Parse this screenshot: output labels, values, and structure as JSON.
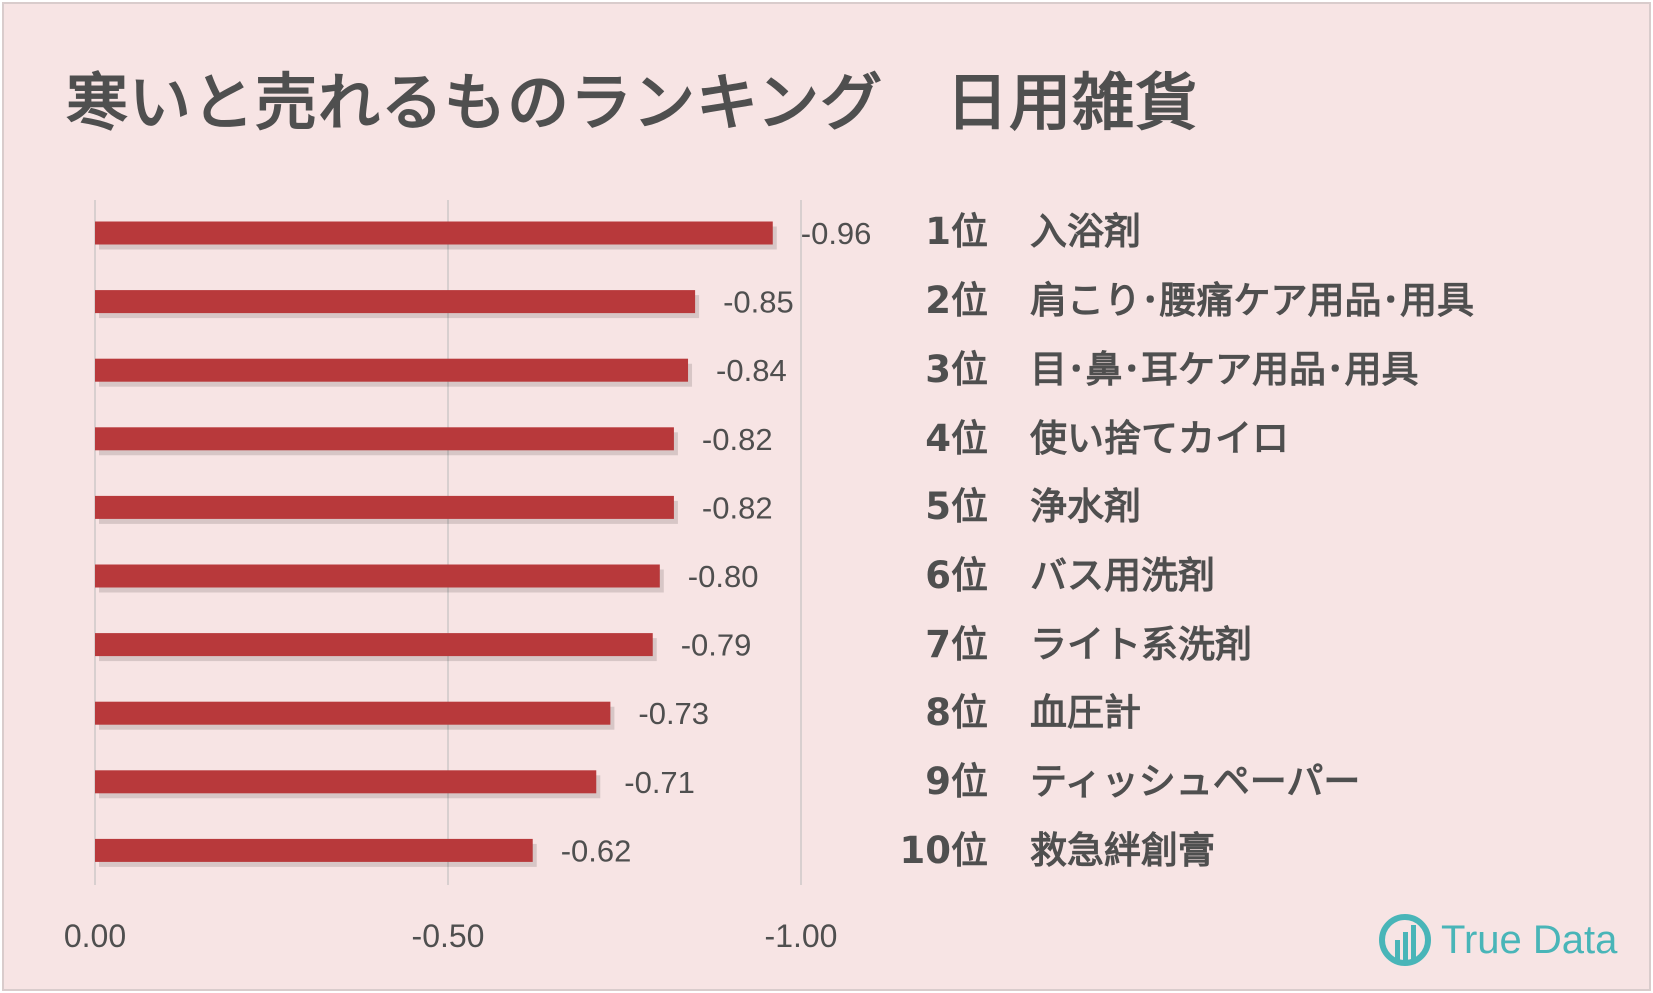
{
  "title": "寒いと売れるものランキング　日用雑貨",
  "chart_data": {
    "type": "bar",
    "orientation": "horizontal",
    "title": "寒いと売れるものランキング　日用雑貨",
    "categories": [
      "1位 入浴剤",
      "2位 肩こり･腰痛ケア用品･用具",
      "3位 目･鼻･耳ケア用品･用具",
      "4位 使い捨てカイロ",
      "5位 浄水剤",
      "6位 バス用洗剤",
      "7位 ライト系洗剤",
      "8位 血圧計",
      "9位 ティッシュペーパー",
      "10位 救急絆創膏"
    ],
    "values": [
      -0.96,
      -0.85,
      -0.84,
      -0.82,
      -0.82,
      -0.8,
      -0.79,
      -0.73,
      -0.71,
      -0.62
    ],
    "value_labels": [
      "-0.96",
      "-0.85",
      "-0.84",
      "-0.82",
      "-0.82",
      "-0.80",
      "-0.79",
      "-0.73",
      "-0.71",
      "-0.62"
    ],
    "xlim": [
      0,
      -1.0
    ],
    "x_ticks": [
      0,
      -0.5,
      -1.0
    ],
    "x_tick_labels": [
      "0.00",
      "-0.50",
      "-1.00"
    ],
    "xlabel": "",
    "ylabel": "",
    "grid": "vertical",
    "legend": "none",
    "bar_color": "#b8393b"
  },
  "ranking": [
    {
      "rank": "1位",
      "item": "入浴剤"
    },
    {
      "rank": "2位",
      "item": "肩こり･腰痛ケア用品･用具"
    },
    {
      "rank": "3位",
      "item": "目･鼻･耳ケア用品･用具"
    },
    {
      "rank": "4位",
      "item": "使い捨てカイロ"
    },
    {
      "rank": "5位",
      "item": "浄水剤"
    },
    {
      "rank": "6位",
      "item": "バス用洗剤"
    },
    {
      "rank": "7位",
      "item": "ライト系洗剤"
    },
    {
      "rank": "8位",
      "item": "血圧計"
    },
    {
      "rank": "9位",
      "item": "ティッシュペーパー"
    },
    {
      "rank": "10位",
      "item": "救急絆創膏"
    }
  ],
  "logo": {
    "text": "True Data",
    "icon": "truedata-logo-icon",
    "color": "#49b5b8"
  },
  "colors": {
    "background": "#f7e4e4",
    "text": "#4f4f4f",
    "grid": "#d8cfcf"
  }
}
